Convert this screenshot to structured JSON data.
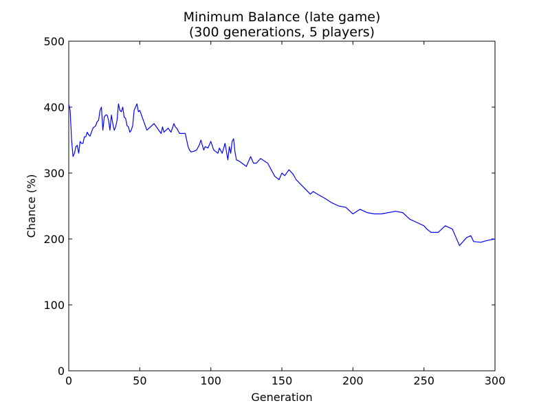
{
  "chart_data": {
    "type": "line",
    "title": "Minimum Balance (late game)",
    "subtitle": "(300 generations, 5 players)",
    "xlabel": "Generation",
    "ylabel": "Chance (%)",
    "xlim": [
      0,
      300
    ],
    "ylim": [
      0,
      500
    ],
    "xticks": [
      0,
      50,
      100,
      150,
      200,
      250,
      300
    ],
    "yticks": [
      0,
      100,
      200,
      300,
      400,
      500
    ],
    "grid": false,
    "line_color": "#0000ff",
    "series": [
      {
        "x": [
          0,
          1,
          2,
          3,
          4,
          5,
          6,
          7,
          8,
          9,
          10,
          11,
          12,
          13,
          14,
          15,
          16,
          17,
          18,
          19,
          20,
          21,
          22,
          23,
          24,
          25,
          26,
          27,
          28,
          29,
          30,
          31,
          32,
          33,
          34,
          35,
          36,
          37,
          38,
          39,
          40,
          41,
          42,
          43,
          44,
          45,
          46,
          47,
          48,
          49,
          50,
          55,
          60,
          65,
          66,
          67,
          70,
          72,
          74,
          75,
          76,
          78,
          80,
          82,
          84,
          85,
          86,
          88,
          90,
          92,
          93,
          95,
          96,
          98,
          100,
          102,
          105,
          106,
          108,
          110,
          112,
          113,
          114,
          115,
          116,
          117,
          118,
          120,
          125,
          128,
          130,
          132,
          135,
          140,
          145,
          148,
          150,
          152,
          155,
          158,
          160,
          170,
          172,
          175,
          180,
          185,
          190,
          195,
          200,
          205,
          210,
          215,
          220,
          225,
          230,
          235,
          240,
          245,
          250,
          252,
          255,
          260,
          265,
          270,
          272,
          275,
          280,
          283,
          285,
          290,
          295,
          300
        ],
        "y": [
          404,
          395,
          350,
          325,
          330,
          340,
          342,
          330,
          348,
          345,
          345,
          355,
          355,
          362,
          358,
          356,
          362,
          368,
          370,
          372,
          378,
          380,
          395,
          400,
          365,
          385,
          388,
          388,
          380,
          365,
          388,
          375,
          365,
          370,
          380,
          405,
          395,
          393,
          400,
          385,
          383,
          372,
          370,
          362,
          365,
          372,
          395,
          400,
          405,
          393,
          395,
          365,
          375,
          360,
          370,
          362,
          368,
          362,
          375,
          370,
          368,
          360,
          360,
          360,
          340,
          335,
          332,
          333,
          335,
          343,
          350,
          335,
          340,
          338,
          348,
          335,
          330,
          338,
          330,
          345,
          320,
          340,
          330,
          348,
          352,
          332,
          320,
          318,
          310,
          325,
          315,
          315,
          322,
          315,
          295,
          290,
          300,
          296,
          305,
          298,
          290,
          268,
          272,
          268,
          262,
          255,
          250,
          248,
          238,
          245,
          240,
          238,
          238,
          240,
          242,
          240,
          230,
          225,
          220,
          215,
          210,
          210,
          220,
          215,
          205,
          190,
          202,
          205,
          196,
          195,
          198,
          200
        ]
      }
    ]
  }
}
